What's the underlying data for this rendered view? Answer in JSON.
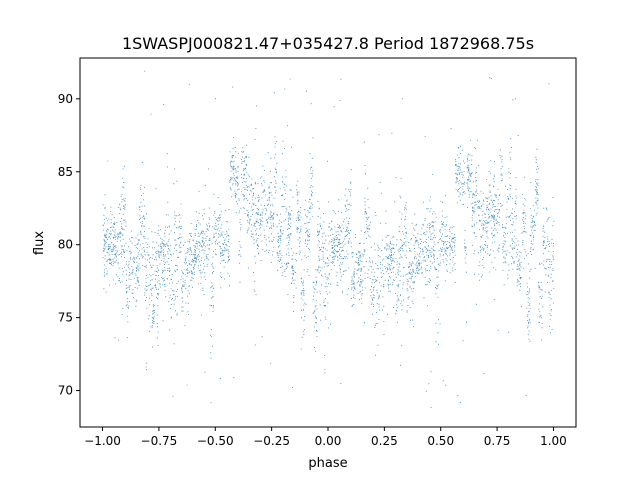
{
  "chart_data": {
    "type": "scatter",
    "title": "1SWASPJ000821.47+035427.8 Period 1872968.75s",
    "xlabel": "phase",
    "ylabel": "flux",
    "xlim": [
      -1.1,
      1.1
    ],
    "ylim": [
      67.5,
      92.8
    ],
    "x_ticks": [
      -1.0,
      -0.75,
      -0.5,
      -0.25,
      0.0,
      0.25,
      0.5,
      0.75,
      1.0
    ],
    "x_tick_labels": [
      "−1.00",
      "−0.75",
      "−0.50",
      "−0.25",
      "0.00",
      "0.25",
      "0.50",
      "0.75",
      "1.00"
    ],
    "y_ticks": [
      70,
      75,
      80,
      85,
      90
    ],
    "y_tick_labels": [
      "70",
      "75",
      "80",
      "85",
      "90"
    ],
    "grid": false,
    "legend": "none",
    "point_color": "#1f77b4",
    "series": [
      {
        "phase_range": [
          -1.0,
          1.0
        ],
        "period_in_phase": 1.0,
        "trend_x": [
          0.0,
          0.05,
          0.1,
          0.15,
          0.2,
          0.25,
          0.3,
          0.35,
          0.4,
          0.45,
          0.5,
          0.55,
          0.6,
          0.65,
          0.7,
          0.75,
          0.8,
          0.85,
          0.9,
          0.95,
          1.0
        ],
        "trend_y": [
          80.0,
          79.6,
          78.6,
          78.3,
          78.1,
          77.9,
          78.2,
          78.8,
          79.6,
          80.2,
          80.5,
          80.8,
          81.1,
          81.3,
          81.4,
          81.7,
          81.9,
          81.6,
          81.0,
          80.4,
          80.0
        ],
        "typical_scatter": 1.6,
        "outlier_range": [
          68.8,
          92.0
        ]
      }
    ]
  }
}
